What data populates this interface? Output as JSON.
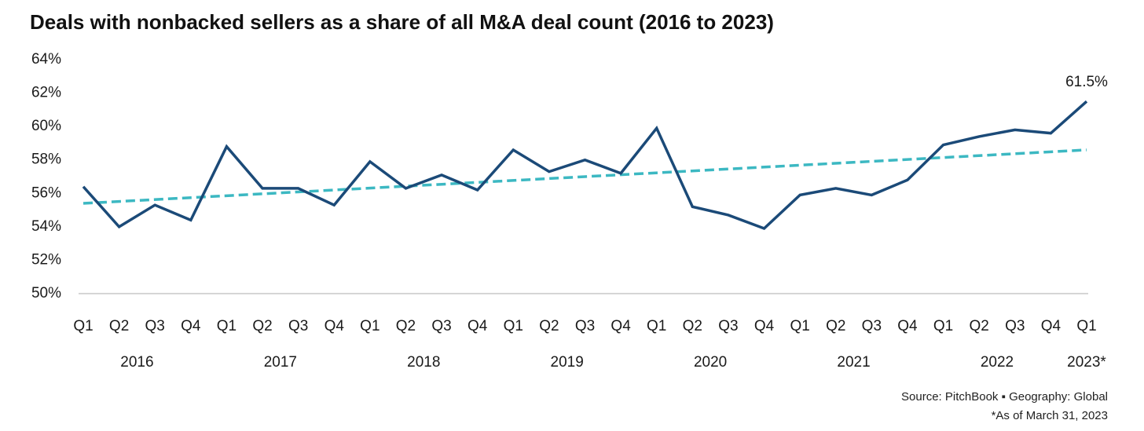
{
  "chart_data": {
    "type": "line",
    "title": "Deals with nonbacked sellers as a share of all M&A deal count (2016 to 2023)",
    "categories": [
      "Q1",
      "Q2",
      "Q3",
      "Q4",
      "Q1",
      "Q2",
      "Q3",
      "Q4",
      "Q1",
      "Q2",
      "Q3",
      "Q4",
      "Q1",
      "Q2",
      "Q3",
      "Q4",
      "Q1",
      "Q2",
      "Q3",
      "Q4",
      "Q1",
      "Q2",
      "Q3",
      "Q4",
      "Q1",
      "Q2",
      "Q3",
      "Q4",
      "Q1"
    ],
    "years": [
      {
        "label": "2016",
        "quarters": 4
      },
      {
        "label": "2017",
        "quarters": 4
      },
      {
        "label": "2018",
        "quarters": 4
      },
      {
        "label": "2019",
        "quarters": 4
      },
      {
        "label": "2020",
        "quarters": 4
      },
      {
        "label": "2021",
        "quarters": 4
      },
      {
        "label": "2022",
        "quarters": 4
      },
      {
        "label": "2023*",
        "quarters": 1
      }
    ],
    "values": [
      56.4,
      54.0,
      55.3,
      54.4,
      58.8,
      56.3,
      56.3,
      55.3,
      57.9,
      56.3,
      57.1,
      56.2,
      58.6,
      57.3,
      58.0,
      57.2,
      59.9,
      55.2,
      54.7,
      53.9,
      55.9,
      56.3,
      55.9,
      56.8,
      58.9,
      59.4,
      59.8,
      59.6,
      61.5
    ],
    "value_labels": [
      null,
      null,
      null,
      null,
      null,
      null,
      null,
      null,
      null,
      null,
      null,
      null,
      null,
      null,
      null,
      null,
      null,
      null,
      null,
      null,
      null,
      null,
      null,
      null,
      null,
      null,
      null,
      null,
      "61.5%"
    ],
    "color": "#1b4a78",
    "trendline": {
      "color": "#3cb8c2",
      "values": [
        55.4,
        58.6
      ]
    },
    "ylim": [
      50,
      64
    ],
    "yticks": [
      {
        "value": 50,
        "label": "50%"
      },
      {
        "value": 52,
        "label": "52%"
      },
      {
        "value": 54,
        "label": "54%"
      },
      {
        "value": 56,
        "label": "56%"
      },
      {
        "value": 58,
        "label": "58%"
      },
      {
        "value": 60,
        "label": "60%"
      },
      {
        "value": 62,
        "label": "62%"
      },
      {
        "value": 64,
        "label": "64%"
      }
    ],
    "grid": false,
    "source": "Source: PitchBook  ▪  Geography: Global",
    "footnote": "*As of March 31, 2023"
  }
}
